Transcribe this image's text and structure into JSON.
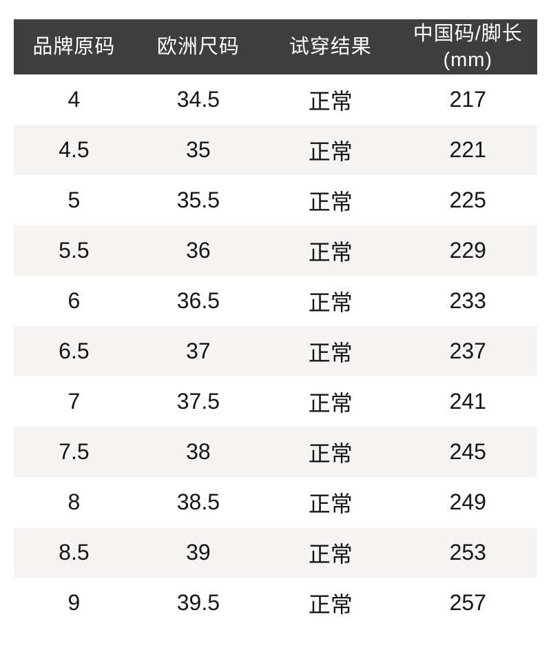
{
  "colors": {
    "header-bg": "#3e3e3e",
    "header-text": "#ffffff",
    "row-alt-bg": "#f5f4f2",
    "body-text": "#151515",
    "page-bg": "#ffffff"
  },
  "table": {
    "columns": [
      {
        "label": "品牌原码"
      },
      {
        "label": "欧洲尺码"
      },
      {
        "label": "试穿结果"
      },
      {
        "label": "中国码/脚长",
        "label_line2": "(mm)"
      }
    ],
    "rows": [
      [
        "4",
        "34.5",
        "正常",
        "217"
      ],
      [
        "4.5",
        "35",
        "正常",
        "221"
      ],
      [
        "5",
        "35.5",
        "正常",
        "225"
      ],
      [
        "5.5",
        "36",
        "正常",
        "229"
      ],
      [
        "6",
        "36.5",
        "正常",
        "233"
      ],
      [
        "6.5",
        "37",
        "正常",
        "237"
      ],
      [
        "7",
        "37.5",
        "正常",
        "241"
      ],
      [
        "7.5",
        "38",
        "正常",
        "245"
      ],
      [
        "8",
        "38.5",
        "正常",
        "249"
      ],
      [
        "8.5",
        "39",
        "正常",
        "253"
      ],
      [
        "9",
        "39.5",
        "正常",
        "257"
      ]
    ]
  }
}
